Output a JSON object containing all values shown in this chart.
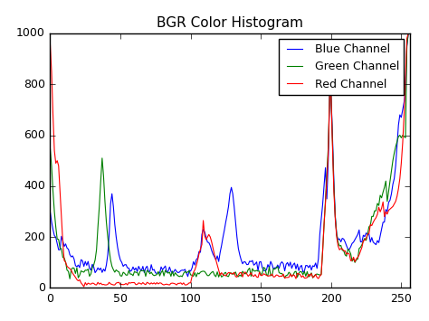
{
  "title": "BGR Color Histogram",
  "xlim": [
    0,
    256
  ],
  "ylim": [
    0,
    1000
  ],
  "xticks": [
    0,
    50,
    100,
    150,
    200,
    250
  ],
  "yticks": [
    0,
    200,
    400,
    600,
    800,
    1000
  ],
  "blue_color": "#0000ff",
  "green_color": "#008000",
  "red_color": "#ff0000",
  "legend": [
    "Blue Channel",
    "Green Channel",
    "Red Channel"
  ],
  "legend_loc": "upper right",
  "style": "classic",
  "seed": 42
}
